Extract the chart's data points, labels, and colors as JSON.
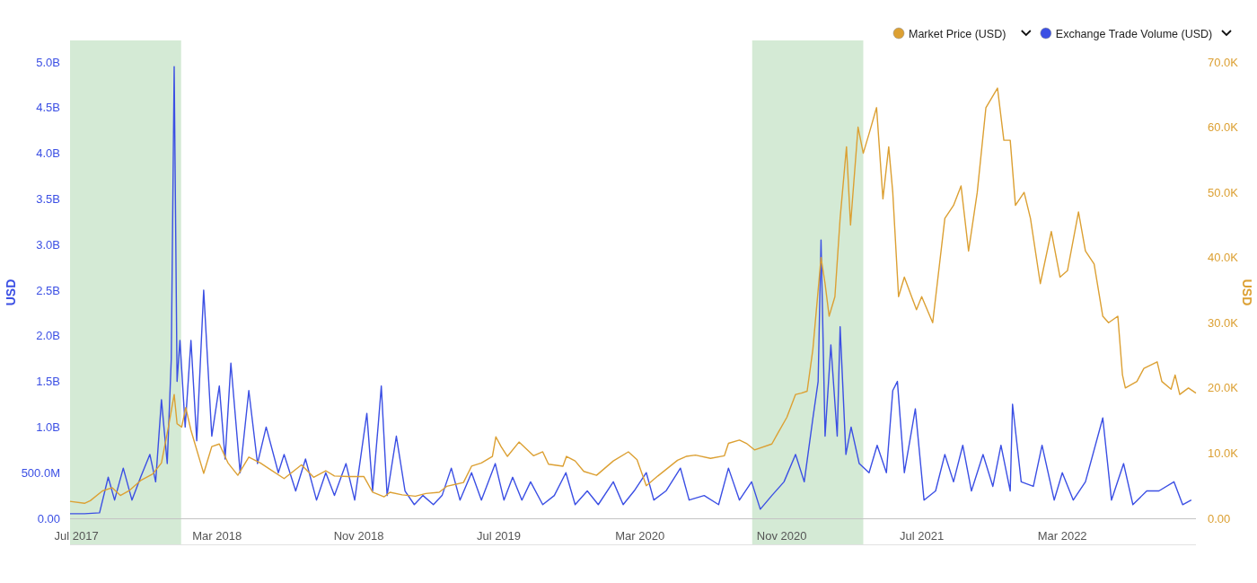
{
  "chart_data": {
    "type": "line",
    "ylabel": "USD",
    "y2label": "USD",
    "legend": "top right",
    "xlim": [
      "2017-06-20",
      "2022-10-18"
    ],
    "xticks": [
      {
        "value": "2017-07-01",
        "label": "Jul 2017"
      },
      {
        "value": "2018-03-01",
        "label": "Mar 2018"
      },
      {
        "value": "2018-11-01",
        "label": "Nov 2018"
      },
      {
        "value": "2019-07-01",
        "label": "Jul 2019"
      },
      {
        "value": "2020-03-01",
        "label": "Mar 2020"
      },
      {
        "value": "2020-11-01",
        "label": "Nov 2020"
      },
      {
        "value": "2021-07-01",
        "label": "Jul 2021"
      },
      {
        "value": "2022-03-01",
        "label": "Mar 2022"
      }
    ],
    "ylim": [
      0,
      5000000000
    ],
    "yticks": [
      {
        "value": 0,
        "label": "0.00"
      },
      {
        "value": 500000000,
        "label": "500.0M"
      },
      {
        "value": 1000000000,
        "label": "1.0B"
      },
      {
        "value": 1500000000,
        "label": "1.5B"
      },
      {
        "value": 2000000000,
        "label": "2.0B"
      },
      {
        "value": 2500000000,
        "label": "2.5B"
      },
      {
        "value": 3000000000,
        "label": "3.0B"
      },
      {
        "value": 3500000000,
        "label": "3.5B"
      },
      {
        "value": 4000000000,
        "label": "4.0B"
      },
      {
        "value": 4500000000,
        "label": "4.5B"
      },
      {
        "value": 5000000000,
        "label": "5.0B"
      }
    ],
    "y2lim": [
      0,
      70000
    ],
    "y2ticks": [
      {
        "value": 0,
        "label": "0.00"
      },
      {
        "value": 10000,
        "label": "10.0K"
      },
      {
        "value": 20000,
        "label": "20.0K"
      },
      {
        "value": 30000,
        "label": "30.0K"
      },
      {
        "value": 40000,
        "label": "40.0K"
      },
      {
        "value": 50000,
        "label": "50.0K"
      },
      {
        "value": 60000,
        "label": "60.0K"
      },
      {
        "value": 70000,
        "label": "70.0K"
      }
    ],
    "bands": [
      {
        "axis": "x",
        "from": "2017-06-20",
        "to": "2017-12-29",
        "color": "#d4ead5"
      },
      {
        "axis": "x",
        "from": "2020-09-11",
        "to": "2021-03-22",
        "color": "#d4ead5"
      }
    ],
    "series": [
      {
        "name": "Market Price (USD)",
        "color": "#dca033",
        "axis": "y2",
        "x": [
          "2017-06-20",
          "2017-07-15",
          "2017-07-25",
          "2017-08-15",
          "2017-09-01",
          "2017-09-15",
          "2017-10-01",
          "2017-10-20",
          "2017-11-10",
          "2017-11-25",
          "2017-12-07",
          "2017-12-17",
          "2017-12-22",
          "2017-12-30",
          "2018-01-06",
          "2018-01-15",
          "2018-02-06",
          "2018-02-20",
          "2018-03-05",
          "2018-03-20",
          "2018-04-06",
          "2018-04-25",
          "2018-05-15",
          "2018-06-01",
          "2018-06-25",
          "2018-07-25",
          "2018-08-15",
          "2018-09-05",
          "2018-09-20",
          "2018-10-15",
          "2018-11-10",
          "2018-11-15",
          "2018-11-25",
          "2018-12-15",
          "2018-12-25",
          "2019-01-15",
          "2019-02-07",
          "2019-02-25",
          "2019-03-20",
          "2019-04-02",
          "2019-05-01",
          "2019-05-15",
          "2019-06-01",
          "2019-06-20",
          "2019-06-26",
          "2019-07-05",
          "2019-07-16",
          "2019-08-05",
          "2019-08-30",
          "2019-09-15",
          "2019-09-25",
          "2019-10-20",
          "2019-10-26",
          "2019-11-10",
          "2019-11-25",
          "2019-12-17",
          "2020-01-15",
          "2020-02-10",
          "2020-02-25",
          "2020-03-12",
          "2020-04-01",
          "2020-05-05",
          "2020-05-20",
          "2020-06-05",
          "2020-07-01",
          "2020-07-25",
          "2020-08-01",
          "2020-08-20",
          "2020-09-01",
          "2020-09-15",
          "2020-10-15",
          "2020-10-25",
          "2020-11-10",
          "2020-11-25",
          "2020-12-05",
          "2020-12-15",
          "2020-12-25",
          "2021-01-08",
          "2021-01-15",
          "2021-01-22",
          "2021-02-01",
          "2021-02-10",
          "2021-02-21",
          "2021-02-28",
          "2021-03-13",
          "2021-03-22",
          "2021-04-01",
          "2021-04-14",
          "2021-04-25",
          "2021-05-05",
          "2021-05-12",
          "2021-05-22",
          "2021-06-01",
          "2021-06-22",
          "2021-07-01",
          "2021-07-20",
          "2021-08-10",
          "2021-08-25",
          "2021-09-07",
          "2021-09-20",
          "2021-10-05",
          "2021-10-20",
          "2021-11-09",
          "2021-11-20",
          "2021-12-01",
          "2021-12-10",
          "2021-12-25",
          "2022-01-05",
          "2022-01-22",
          "2022-02-10",
          "2022-02-25",
          "2022-03-10",
          "2022-03-29",
          "2022-04-10",
          "2022-04-25",
          "2022-05-10",
          "2022-05-20",
          "2022-06-05",
          "2022-06-13",
          "2022-06-18",
          "2022-07-08",
          "2022-07-20",
          "2022-08-12",
          "2022-08-20",
          "2022-09-05",
          "2022-09-12",
          "2022-09-20",
          "2022-10-05",
          "2022-10-18"
        ],
        "values": [
          2600,
          2300,
          2700,
          4200,
          4700,
          3500,
          4300,
          5800,
          6800,
          8500,
          14000,
          19000,
          14500,
          14000,
          17000,
          13500,
          6900,
          11000,
          11400,
          8500,
          6600,
          9400,
          8500,
          7500,
          6100,
          8200,
          6300,
          7300,
          6500,
          6400,
          6400,
          5600,
          4000,
          3300,
          4000,
          3600,
          3400,
          3800,
          4000,
          4900,
          5500,
          8000,
          8500,
          9500,
          12500,
          11000,
          9500,
          11700,
          9600,
          10200,
          8300,
          8000,
          9500,
          8800,
          7200,
          6600,
          8800,
          10200,
          9000,
          5000,
          6500,
          8900,
          9500,
          9700,
          9200,
          9600,
          11500,
          12000,
          11500,
          10500,
          11400,
          13000,
          15500,
          19000,
          19200,
          19500,
          26000,
          40000,
          36000,
          31000,
          34000,
          46000,
          57000,
          45000,
          60000,
          56000,
          59000,
          63000,
          49000,
          57000,
          50000,
          34000,
          37000,
          32000,
          34000,
          30000,
          46000,
          48000,
          51000,
          41000,
          50000,
          63000,
          66000,
          58000,
          58000,
          48000,
          50000,
          46000,
          36000,
          44000,
          37000,
          38000,
          47000,
          41000,
          39000,
          31000,
          30000,
          31000,
          22000,
          20000,
          21000,
          23000,
          24000,
          21000,
          19800,
          22000,
          19000,
          20000,
          19200
        ]
      },
      {
        "name": "Exchange Trade Volume (USD)",
        "color": "#3b4fe4",
        "x": [
          "2017-06-20",
          "2017-07-15",
          "2017-08-10",
          "2017-08-25",
          "2017-09-05",
          "2017-09-20",
          "2017-10-05",
          "2017-10-20",
          "2017-11-05",
          "2017-11-15",
          "2017-11-25",
          "2017-12-05",
          "2017-12-12",
          "2017-12-17",
          "2017-12-22",
          "2017-12-27",
          "2018-01-05",
          "2018-01-15",
          "2018-01-25",
          "2018-02-06",
          "2018-02-20",
          "2018-03-05",
          "2018-03-15",
          "2018-03-25",
          "2018-04-10",
          "2018-04-25",
          "2018-05-10",
          "2018-05-25",
          "2018-06-15",
          "2018-06-25",
          "2018-07-15",
          "2018-08-01",
          "2018-08-20",
          "2018-09-05",
          "2018-09-20",
          "2018-10-10",
          "2018-10-25",
          "2018-11-15",
          "2018-11-25",
          "2018-12-05",
          "2018-12-10",
          "2018-12-20",
          "2019-01-05",
          "2019-01-20",
          "2019-02-05",
          "2019-02-20",
          "2019-03-10",
          "2019-03-25",
          "2019-04-10",
          "2019-04-25",
          "2019-05-15",
          "2019-06-01",
          "2019-06-25",
          "2019-07-10",
          "2019-07-25",
          "2019-08-10",
          "2019-08-25",
          "2019-09-15",
          "2019-10-05",
          "2019-10-25",
          "2019-11-10",
          "2019-12-01",
          "2019-12-20",
          "2020-01-15",
          "2020-02-01",
          "2020-02-20",
          "2020-03-12",
          "2020-03-25",
          "2020-04-15",
          "2020-05-10",
          "2020-05-25",
          "2020-06-20",
          "2020-07-15",
          "2020-08-01",
          "2020-08-20",
          "2020-09-10",
          "2020-09-25",
          "2020-10-15",
          "2020-11-05",
          "2020-11-25",
          "2020-12-10",
          "2020-12-25",
          "2021-01-03",
          "2021-01-08",
          "2021-01-15",
          "2021-01-25",
          "2021-02-05",
          "2021-02-10",
          "2021-02-20",
          "2021-03-01",
          "2021-03-15",
          "2021-04-01",
          "2021-04-15",
          "2021-05-01",
          "2021-05-12",
          "2021-05-20",
          "2021-06-01",
          "2021-06-20",
          "2021-07-05",
          "2021-07-25",
          "2021-08-10",
          "2021-08-25",
          "2021-09-10",
          "2021-09-25",
          "2021-10-15",
          "2021-11-01",
          "2021-11-15",
          "2021-12-01",
          "2021-12-05",
          "2021-12-20",
          "2022-01-10",
          "2022-01-25",
          "2022-02-15",
          "2022-03-01",
          "2022-03-20",
          "2022-04-10",
          "2022-05-10",
          "2022-05-25",
          "2022-06-15",
          "2022-07-01",
          "2022-07-25",
          "2022-08-15",
          "2022-09-10",
          "2022-09-25",
          "2022-10-10"
        ],
        "values": [
          50000000,
          50000000,
          60000000,
          450000000,
          200000000,
          550000000,
          200000000,
          450000000,
          700000000,
          400000000,
          1300000000,
          600000000,
          1750000000,
          4950000000,
          1500000000,
          1950000000,
          1000000000,
          1950000000,
          850000000,
          2500000000,
          900000000,
          1450000000,
          650000000,
          1700000000,
          500000000,
          1400000000,
          600000000,
          1000000000,
          500000000,
          700000000,
          300000000,
          650000000,
          200000000,
          500000000,
          250000000,
          600000000,
          200000000,
          1150000000,
          300000000,
          1050000000,
          1450000000,
          250000000,
          900000000,
          300000000,
          150000000,
          250000000,
          150000000,
          250000000,
          550000000,
          200000000,
          500000000,
          200000000,
          600000000,
          200000000,
          450000000,
          200000000,
          400000000,
          150000000,
          250000000,
          500000000,
          150000000,
          300000000,
          150000000,
          400000000,
          150000000,
          300000000,
          500000000,
          200000000,
          300000000,
          550000000,
          200000000,
          250000000,
          150000000,
          550000000,
          200000000,
          400000000,
          100000000,
          250000000,
          400000000,
          700000000,
          400000000,
          1100000000,
          1500000000,
          3050000000,
          900000000,
          1900000000,
          900000000,
          2100000000,
          700000000,
          1000000000,
          600000000,
          500000000,
          800000000,
          500000000,
          1400000000,
          1500000000,
          500000000,
          1200000000,
          200000000,
          300000000,
          700000000,
          400000000,
          800000000,
          300000000,
          700000000,
          350000000,
          800000000,
          300000000,
          1250000000,
          400000000,
          350000000,
          800000000,
          200000000,
          500000000,
          200000000,
          400000000,
          1100000000,
          200000000,
          600000000,
          150000000,
          300000000,
          300000000,
          400000000,
          150000000,
          200000000
        ]
      }
    ]
  }
}
